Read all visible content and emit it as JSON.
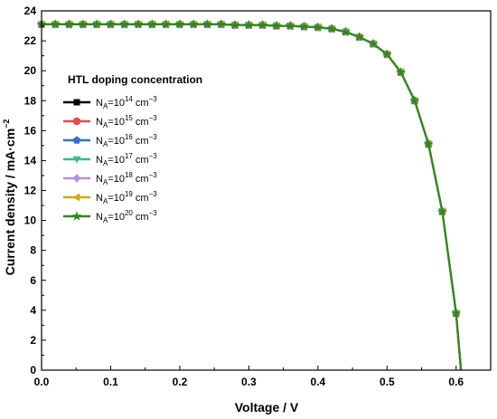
{
  "chart_data": {
    "type": "line",
    "xlabel": "Voltage / V",
    "ylabel_main": "Current density / mA·cm",
    "ylabel_sup": "−2",
    "xlim": [
      0.0,
      0.65
    ],
    "ylim": [
      0,
      24
    ],
    "xticks": [
      "0.0",
      "0.1",
      "0.2",
      "0.3",
      "0.4",
      "0.5",
      "0.6"
    ],
    "xtick_values": [
      0.0,
      0.1,
      0.2,
      0.3,
      0.4,
      0.5,
      0.6
    ],
    "yticks": [
      "0",
      "2",
      "4",
      "6",
      "8",
      "10",
      "12",
      "14",
      "16",
      "18",
      "20",
      "22",
      "24"
    ],
    "ytick_values": [
      0,
      2,
      4,
      6,
      8,
      10,
      12,
      14,
      16,
      18,
      20,
      22,
      24
    ],
    "grid": false,
    "legend_title": "HTL doping concentration",
    "legend_placement": "left",
    "x": [
      0.0,
      0.02,
      0.04,
      0.06,
      0.08,
      0.1,
      0.12,
      0.14,
      0.16,
      0.18,
      0.2,
      0.22,
      0.24,
      0.26,
      0.28,
      0.3,
      0.32,
      0.34,
      0.36,
      0.38,
      0.4,
      0.42,
      0.44,
      0.46,
      0.48,
      0.5,
      0.52,
      0.54,
      0.56,
      0.58,
      0.6,
      0.607
    ],
    "y": [
      23.1,
      23.1,
      23.1,
      23.1,
      23.1,
      23.1,
      23.1,
      23.1,
      23.1,
      23.1,
      23.1,
      23.1,
      23.1,
      23.1,
      23.05,
      23.05,
      23.05,
      23.0,
      23.0,
      22.95,
      22.9,
      22.8,
      22.6,
      22.25,
      21.8,
      21.1,
      19.9,
      18.0,
      15.1,
      10.6,
      3.8,
      0
    ],
    "series": [
      {
        "label_base": "N",
        "label_sub": "A",
        "label_mid": "=10",
        "label_exp": "14",
        "label_unit": " cm",
        "label_unit_exp": "−3",
        "color": "#000000",
        "marker": "square"
      },
      {
        "label_base": "N",
        "label_sub": "A",
        "label_mid": "=10",
        "label_exp": "15",
        "label_unit": " cm",
        "label_unit_exp": "−3",
        "color": "#e8494a",
        "marker": "circle"
      },
      {
        "label_base": "N",
        "label_sub": "A",
        "label_mid": "=10",
        "label_exp": "16",
        "label_unit": " cm",
        "label_unit_exp": "−3",
        "color": "#2f6fd0",
        "marker": "pentagon"
      },
      {
        "label_base": "N",
        "label_sub": "A",
        "label_mid": "=10",
        "label_exp": "17",
        "label_unit": " cm",
        "label_unit_exp": "−3",
        "color": "#3fb98a",
        "marker": "triangle-down"
      },
      {
        "label_base": "N",
        "label_sub": "A",
        "label_mid": "=10",
        "label_exp": "18",
        "label_unit": " cm",
        "label_unit_exp": "−3",
        "color": "#b78fe0",
        "marker": "diamond"
      },
      {
        "label_base": "N",
        "label_sub": "A",
        "label_mid": "=10",
        "label_exp": "19",
        "label_unit": " cm",
        "label_unit_exp": "−3",
        "color": "#d4a418",
        "marker": "triangle-left"
      },
      {
        "label_base": "N",
        "label_sub": "A",
        "label_mid": "=10",
        "label_exp": "20",
        "label_unit": " cm",
        "label_unit_exp": "−3",
        "color": "#2c8a1e",
        "marker": "star"
      }
    ]
  }
}
